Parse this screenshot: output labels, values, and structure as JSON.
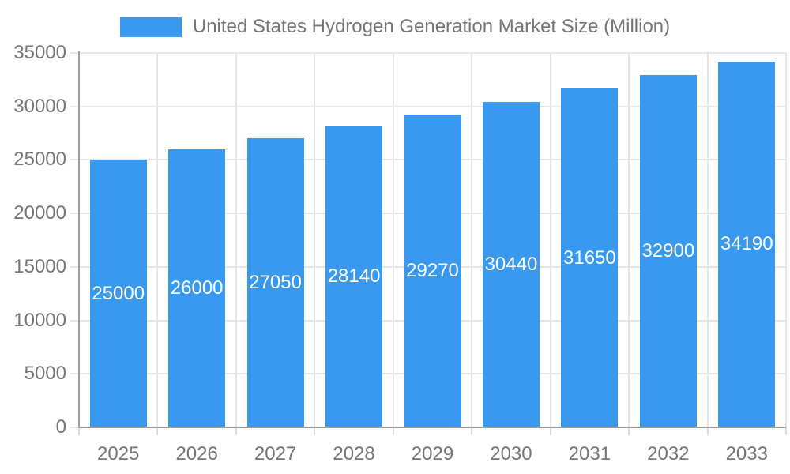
{
  "legend": {
    "swatch_icon": "series-color-swatch"
  },
  "colors": {
    "bar": "#3899EE",
    "title_text": "#757575",
    "axis_label_text": "#757575",
    "bar_label_text": "#FFFFFF",
    "axis_line": "#9E9E9E",
    "gridline": "#E6E6E6",
    "x_tick": "#DCDCDC",
    "background": "#FFFFFF"
  },
  "chart_data": {
    "type": "bar",
    "title": "United States Hydrogen Generation Market Size (Million)",
    "series_name": "United States Hydrogen Generation Market Size (Million)",
    "categories": [
      "2025",
      "2026",
      "2027",
      "2028",
      "2029",
      "2030",
      "2031",
      "2032",
      "2033"
    ],
    "values": [
      25000,
      26000,
      27050,
      28140,
      29270,
      30440,
      31650,
      32900,
      34190
    ],
    "xlabel": "",
    "ylabel": "",
    "ylim": [
      0,
      35000
    ],
    "yticks": [
      0,
      5000,
      10000,
      15000,
      20000,
      25000,
      30000,
      35000
    ],
    "grid": true,
    "legend_position": "top-center",
    "bar_labels_shown": true,
    "bar_label_position": "middle-of-bar"
  }
}
